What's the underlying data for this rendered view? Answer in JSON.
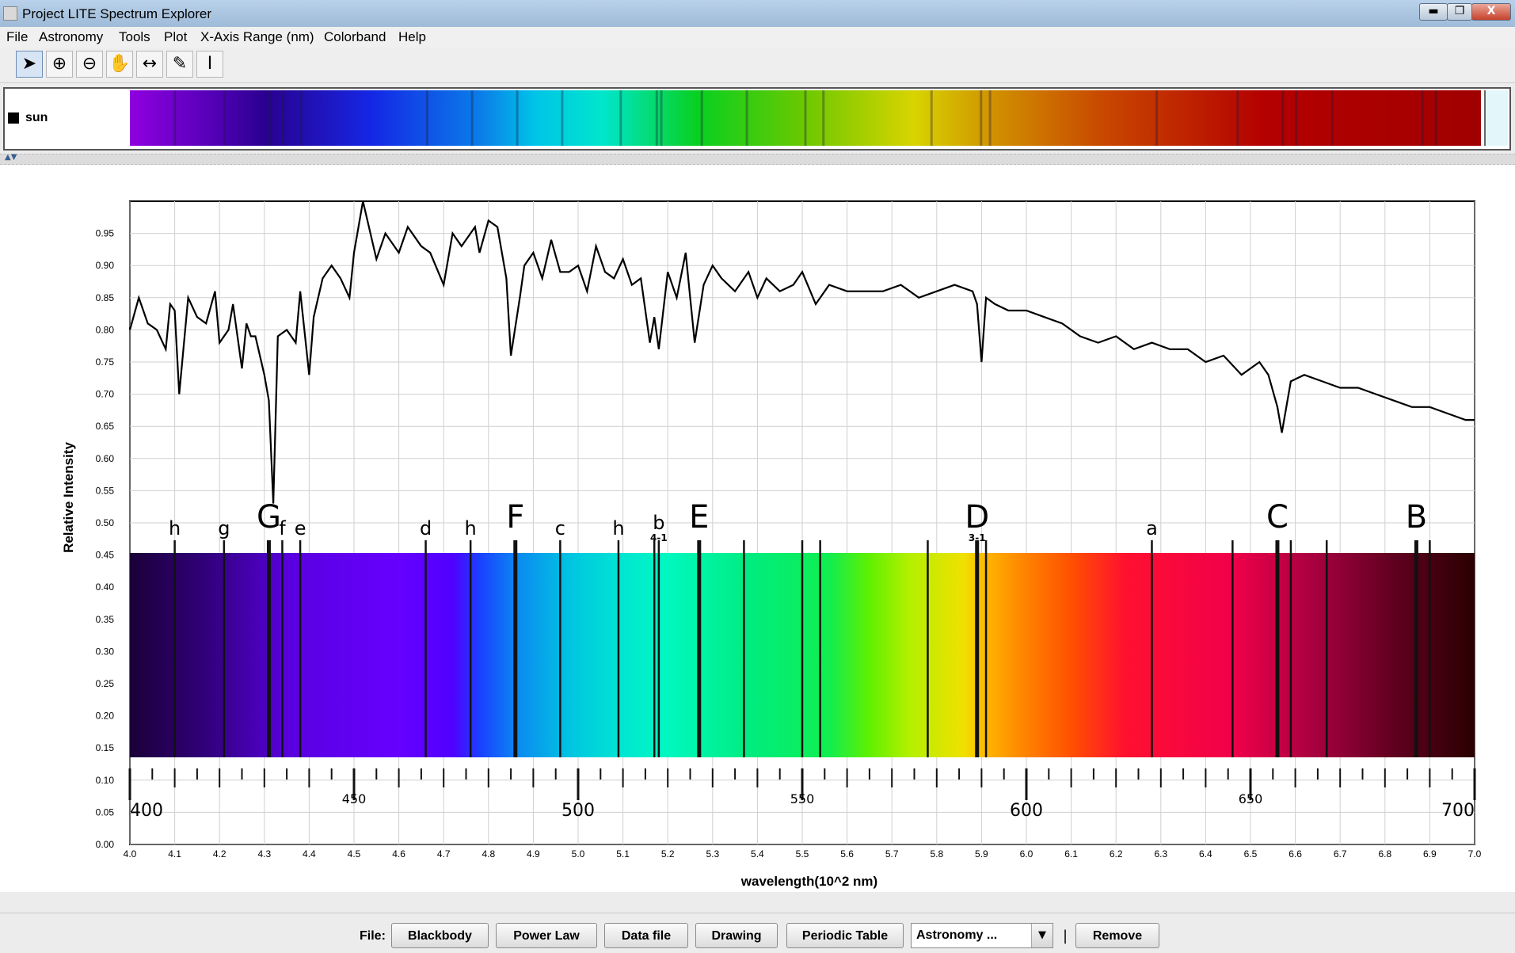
{
  "window": {
    "title": "Project LITE Spectrum Explorer",
    "min": "▬",
    "max": "❐",
    "close": "X"
  },
  "menu": [
    "File",
    "Astronomy",
    "Tools",
    "Plot",
    "X-Axis Range (nm)",
    "Colorband",
    "Help"
  ],
  "toolbar": [
    {
      "icon": "pointer-icon",
      "glyph": "➤"
    },
    {
      "icon": "zoom-in-icon",
      "glyph": "⊕"
    },
    {
      "icon": "zoom-out-icon",
      "glyph": "⊖"
    },
    {
      "icon": "hand-pan-icon",
      "glyph": "✋"
    },
    {
      "icon": "horizontal-measure-icon",
      "glyph": "↔"
    },
    {
      "icon": "pen-icon",
      "glyph": "✎"
    },
    {
      "icon": "vertical-measure-icon",
      "glyph": "I"
    }
  ],
  "colorband_panel": {
    "legend_label": "sun",
    "legend_color": "#000000"
  },
  "chart_data": {
    "type": "line",
    "xlabel": "wavelength(10^2 nm)",
    "ylabel": "Relative Intensity",
    "xlim": [
      4.0,
      7.0
    ],
    "ylim": [
      0.0,
      1.0
    ],
    "grid": true,
    "x_ticks": [
      "4.0",
      "4.1",
      "4.2",
      "4.3",
      "4.4",
      "4.5",
      "4.6",
      "4.7",
      "4.8",
      "4.9",
      "5.0",
      "5.1",
      "5.2",
      "5.3",
      "5.4",
      "5.5",
      "5.6",
      "5.7",
      "5.8",
      "5.9",
      "6.0",
      "6.1",
      "6.2",
      "6.3",
      "6.4",
      "6.5",
      "6.6",
      "6.7",
      "6.8",
      "6.9",
      "7.0"
    ],
    "y_ticks": [
      "0.00",
      "0.05",
      "0.10",
      "0.15",
      "0.20",
      "0.25",
      "0.30",
      "0.35",
      "0.40",
      "0.45",
      "0.50",
      "0.55",
      "0.60",
      "0.65",
      "0.70",
      "0.75",
      "0.80",
      "0.85",
      "0.90",
      "0.95"
    ],
    "series": [
      {
        "x": [
          4.0,
          4.02,
          4.04,
          4.06,
          4.08,
          4.09,
          4.1,
          4.11,
          4.13,
          4.15,
          4.17,
          4.19,
          4.2,
          4.22,
          4.23,
          4.25,
          4.26,
          4.27,
          4.28,
          4.3,
          4.31,
          4.32,
          4.33,
          4.35,
          4.37,
          4.38,
          4.4,
          4.41,
          4.43,
          4.45,
          4.47,
          4.49,
          4.5,
          4.52,
          4.55,
          4.57,
          4.6,
          4.62,
          4.65,
          4.67,
          4.7,
          4.72,
          4.74,
          4.77,
          4.78,
          4.8,
          4.82,
          4.84,
          4.85,
          4.87,
          4.88,
          4.9,
          4.92,
          4.94,
          4.96,
          4.98,
          5.0,
          5.02,
          5.04,
          5.06,
          5.08,
          5.1,
          5.12,
          5.14,
          5.16,
          5.17,
          5.18,
          5.2,
          5.22,
          5.24,
          5.26,
          5.28,
          5.3,
          5.32,
          5.35,
          5.38,
          5.4,
          5.42,
          5.45,
          5.48,
          5.5,
          5.53,
          5.56,
          5.6,
          5.64,
          5.68,
          5.72,
          5.76,
          5.8,
          5.84,
          5.88,
          5.89,
          5.9,
          5.91,
          5.93,
          5.96,
          6.0,
          6.04,
          6.08,
          6.12,
          6.16,
          6.2,
          6.24,
          6.28,
          6.32,
          6.36,
          6.4,
          6.44,
          6.48,
          6.52,
          6.54,
          6.56,
          6.57,
          6.59,
          6.62,
          6.66,
          6.7,
          6.74,
          6.78,
          6.82,
          6.86,
          6.9,
          6.94,
          6.98,
          7.0
        ],
        "y": [
          0.8,
          0.85,
          0.81,
          0.8,
          0.77,
          0.84,
          0.83,
          0.7,
          0.85,
          0.82,
          0.81,
          0.86,
          0.78,
          0.8,
          0.84,
          0.74,
          0.81,
          0.79,
          0.79,
          0.73,
          0.69,
          0.53,
          0.79,
          0.8,
          0.78,
          0.86,
          0.73,
          0.82,
          0.88,
          0.9,
          0.88,
          0.85,
          0.92,
          1.0,
          0.91,
          0.95,
          0.92,
          0.96,
          0.93,
          0.92,
          0.87,
          0.95,
          0.93,
          0.96,
          0.92,
          0.97,
          0.96,
          0.88,
          0.76,
          0.85,
          0.9,
          0.92,
          0.88,
          0.94,
          0.89,
          0.89,
          0.9,
          0.86,
          0.93,
          0.89,
          0.88,
          0.91,
          0.87,
          0.88,
          0.78,
          0.82,
          0.77,
          0.89,
          0.85,
          0.92,
          0.78,
          0.87,
          0.9,
          0.88,
          0.86,
          0.89,
          0.85,
          0.88,
          0.86,
          0.87,
          0.89,
          0.84,
          0.87,
          0.86,
          0.86,
          0.86,
          0.87,
          0.85,
          0.86,
          0.87,
          0.86,
          0.84,
          0.75,
          0.85,
          0.84,
          0.83,
          0.83,
          0.82,
          0.81,
          0.79,
          0.78,
          0.79,
          0.77,
          0.78,
          0.77,
          0.77,
          0.75,
          0.76,
          0.73,
          0.75,
          0.73,
          0.68,
          0.64,
          0.72,
          0.73,
          0.72,
          0.71,
          0.71,
          0.7,
          0.69,
          0.68,
          0.68,
          0.67,
          0.66,
          0.66
        ]
      }
    ],
    "fraunhofer_labels": [
      {
        "x": 4.1,
        "label": "h",
        "size": "small"
      },
      {
        "x": 4.21,
        "label": "g",
        "size": "small"
      },
      {
        "x": 4.31,
        "label": "G",
        "size": "large"
      },
      {
        "x": 4.34,
        "label": "f",
        "size": "small"
      },
      {
        "x": 4.38,
        "label": "e",
        "size": "small"
      },
      {
        "x": 4.66,
        "label": "d",
        "size": "small"
      },
      {
        "x": 4.86,
        "label": "h",
        "size": "small"
      },
      {
        "x": 4.86,
        "label": "F",
        "size": "large"
      },
      {
        "x": 4.96,
        "label": "c",
        "size": "small"
      },
      {
        "x": 5.09,
        "label": "h",
        "size": "small"
      },
      {
        "x": 5.18,
        "label": "b",
        "size": "small",
        "sub": "4-1"
      },
      {
        "x": 5.27,
        "label": "E",
        "size": "large"
      },
      {
        "x": 5.89,
        "label": "D",
        "size": "large",
        "sub": "3-1"
      },
      {
        "x": 6.28,
        "label": "a",
        "size": "small"
      },
      {
        "x": 6.56,
        "label": "C",
        "size": "large"
      },
      {
        "x": 6.87,
        "label": "B",
        "size": "large"
      }
    ],
    "spectrum_lines": [
      4.1,
      4.21,
      4.31,
      4.34,
      4.38,
      4.66,
      4.76,
      4.86,
      4.96,
      5.09,
      5.17,
      5.18,
      5.27,
      5.37,
      5.5,
      5.54,
      5.78,
      5.89,
      5.91,
      6.28,
      6.46,
      6.56,
      6.59,
      6.67,
      6.87,
      6.9
    ],
    "nm_labels": {
      "minor": [
        "450",
        "550",
        "650"
      ],
      "major": [
        "400",
        "500",
        "600",
        "700"
      ]
    }
  },
  "bottom": {
    "file_label": "File:",
    "buttons": [
      "Blackbody",
      "Power Law",
      "Data file",
      "Drawing",
      "Periodic Table"
    ],
    "select_value": "Astronomy ...",
    "separator": "|",
    "remove": "Remove"
  }
}
